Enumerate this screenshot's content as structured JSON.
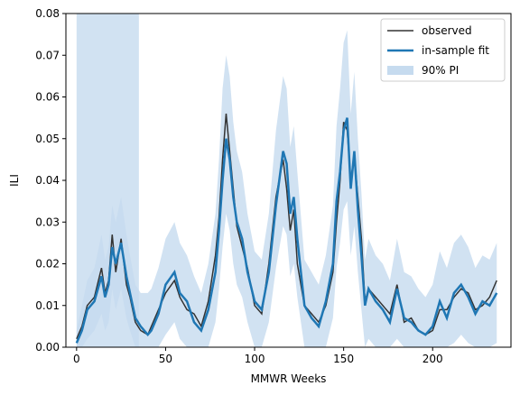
{
  "chart_data": {
    "type": "line",
    "xlabel": "MMWR Weeks",
    "ylabel": "ILI",
    "xlim": [
      -6,
      244
    ],
    "ylim": [
      0,
      0.08
    ],
    "xticks": [
      0,
      50,
      100,
      150,
      200
    ],
    "xtick_labels": [
      "0",
      "50",
      "100",
      "150",
      "200"
    ],
    "yticks": [
      0,
      0.01,
      0.02,
      0.03,
      0.04,
      0.05,
      0.06,
      0.07,
      0.08
    ],
    "ytick_labels": [
      "0.00",
      "0.01",
      "0.02",
      "0.03",
      "0.04",
      "0.05",
      "0.06",
      "0.07",
      "0.08"
    ],
    "grid": false,
    "legend_position": "top-right",
    "legend": [
      {
        "label": "observed",
        "kind": "line",
        "color": "#333333"
      },
      {
        "label": "in-sample fit",
        "kind": "line",
        "color": "#1f77b4"
      },
      {
        "label": "90% PI",
        "kind": "patch",
        "color": "#c6dbef"
      }
    ],
    "shaded_region": {
      "x_start": 0,
      "x_end": 35,
      "color": "#c6dbef"
    },
    "anchors": {
      "x": [
        0,
        3,
        6,
        10,
        14,
        16,
        18,
        20,
        22,
        25,
        28,
        30,
        33,
        36,
        40,
        42,
        46,
        50,
        55,
        58,
        62,
        66,
        70,
        74,
        78,
        80,
        82,
        84,
        86,
        88,
        90,
        93,
        96,
        100,
        104,
        108,
        112,
        116,
        118,
        120,
        122,
        124,
        128,
        132,
        136,
        140,
        144,
        146,
        148,
        150,
        152,
        154,
        156,
        158,
        160,
        162,
        164,
        168,
        172,
        176,
        180,
        184,
        188,
        192,
        196,
        200,
        204,
        208,
        212,
        216,
        220,
        224,
        228,
        232,
        236
      ],
      "observed": [
        0.002,
        0.005,
        0.01,
        0.012,
        0.019,
        0.013,
        0.016,
        0.027,
        0.018,
        0.026,
        0.015,
        0.012,
        0.006,
        0.004,
        0.003,
        0.005,
        0.009,
        0.013,
        0.016,
        0.012,
        0.009,
        0.008,
        0.005,
        0.011,
        0.022,
        0.031,
        0.045,
        0.056,
        0.047,
        0.038,
        0.029,
        0.024,
        0.019,
        0.01,
        0.008,
        0.02,
        0.036,
        0.045,
        0.038,
        0.028,
        0.033,
        0.02,
        0.01,
        0.008,
        0.006,
        0.01,
        0.018,
        0.03,
        0.04,
        0.054,
        0.052,
        0.04,
        0.046,
        0.036,
        0.026,
        0.011,
        0.014,
        0.012,
        0.01,
        0.008,
        0.015,
        0.006,
        0.007,
        0.004,
        0.003,
        0.004,
        0.009,
        0.009,
        0.012,
        0.014,
        0.013,
        0.009,
        0.01,
        0.012,
        0.016
      ],
      "fit": [
        0.001,
        0.004,
        0.009,
        0.011,
        0.017,
        0.012,
        0.015,
        0.024,
        0.02,
        0.025,
        0.017,
        0.013,
        0.007,
        0.005,
        0.003,
        0.004,
        0.008,
        0.015,
        0.018,
        0.013,
        0.011,
        0.006,
        0.004,
        0.009,
        0.018,
        0.028,
        0.04,
        0.05,
        0.045,
        0.036,
        0.03,
        0.026,
        0.018,
        0.011,
        0.009,
        0.018,
        0.034,
        0.047,
        0.044,
        0.032,
        0.036,
        0.026,
        0.01,
        0.007,
        0.005,
        0.011,
        0.02,
        0.035,
        0.042,
        0.052,
        0.055,
        0.038,
        0.047,
        0.033,
        0.022,
        0.01,
        0.014,
        0.011,
        0.009,
        0.006,
        0.014,
        0.007,
        0.006,
        0.004,
        0.003,
        0.005,
        0.011,
        0.007,
        0.013,
        0.015,
        0.012,
        0.008,
        0.011,
        0.01,
        0.013
      ],
      "pi_lower": [
        0.0,
        0.0,
        0.002,
        0.004,
        0.008,
        0.004,
        0.006,
        0.014,
        0.009,
        0.014,
        0.007,
        0.004,
        0.0,
        0.0,
        0.0,
        0.0,
        0.0,
        0.003,
        0.006,
        0.002,
        0.0,
        0.0,
        0.0,
        0.0,
        0.006,
        0.014,
        0.024,
        0.032,
        0.028,
        0.02,
        0.015,
        0.012,
        0.006,
        0.0,
        0.0,
        0.006,
        0.019,
        0.029,
        0.027,
        0.017,
        0.02,
        0.012,
        0.0,
        0.0,
        0.0,
        0.0,
        0.007,
        0.019,
        0.025,
        0.033,
        0.035,
        0.022,
        0.029,
        0.018,
        0.009,
        0.0,
        0.002,
        0.0,
        0.0,
        0.0,
        0.002,
        0.0,
        0.0,
        0.0,
        0.0,
        0.0,
        0.0,
        0.0,
        0.001,
        0.003,
        0.001,
        0.0,
        0.0,
        0.0,
        0.001
      ],
      "pi_upper": [
        0.004,
        0.01,
        0.016,
        0.019,
        0.027,
        0.021,
        0.024,
        0.034,
        0.03,
        0.036,
        0.027,
        0.022,
        0.015,
        0.013,
        0.013,
        0.014,
        0.019,
        0.026,
        0.03,
        0.025,
        0.022,
        0.017,
        0.013,
        0.02,
        0.032,
        0.045,
        0.062,
        0.07,
        0.065,
        0.054,
        0.047,
        0.042,
        0.032,
        0.023,
        0.021,
        0.032,
        0.052,
        0.065,
        0.062,
        0.048,
        0.053,
        0.042,
        0.021,
        0.018,
        0.015,
        0.022,
        0.034,
        0.053,
        0.062,
        0.073,
        0.076,
        0.056,
        0.066,
        0.05,
        0.037,
        0.021,
        0.026,
        0.022,
        0.02,
        0.016,
        0.026,
        0.018,
        0.017,
        0.014,
        0.012,
        0.015,
        0.023,
        0.019,
        0.025,
        0.027,
        0.024,
        0.019,
        0.022,
        0.021,
        0.025
      ]
    }
  }
}
